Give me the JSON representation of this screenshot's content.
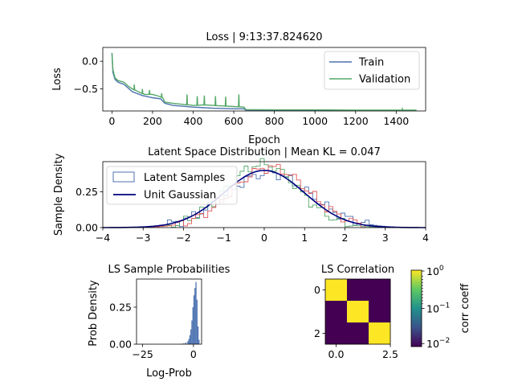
{
  "chart_data": [
    {
      "id": "loss",
      "type": "line",
      "title": "Loss | 9:13:37.824620",
      "xlabel": "Epoch",
      "ylabel": "Loss",
      "xlim": [
        -45,
        1545
      ],
      "ylim": [
        -0.9,
        0.25
      ],
      "xticks": [
        0,
        200,
        400,
        600,
        800,
        1000,
        1200,
        1400
      ],
      "yticks": [
        0.0,
        -0.5
      ],
      "legend": "upper right",
      "series": [
        {
          "name": "Train",
          "color": "#4c72b0",
          "points": [
            [
              0,
              0.15
            ],
            [
              5,
              -0.2
            ],
            [
              15,
              -0.33
            ],
            [
              30,
              -0.38
            ],
            [
              60,
              -0.42
            ],
            [
              100,
              -0.55
            ],
            [
              150,
              -0.62
            ],
            [
              200,
              -0.66
            ],
            [
              240,
              -0.68
            ],
            [
              260,
              -0.76
            ],
            [
              300,
              -0.8
            ],
            [
              400,
              -0.83
            ],
            [
              500,
              -0.85
            ],
            [
              600,
              -0.86
            ],
            [
              650,
              -0.86
            ],
            [
              660,
              -0.885
            ],
            [
              800,
              -0.89
            ],
            [
              1000,
              -0.89
            ],
            [
              1200,
              -0.89
            ],
            [
              1500,
              -0.89
            ]
          ]
        },
        {
          "name": "Validation",
          "color": "#55a868",
          "points": [
            [
              0,
              0.15
            ],
            [
              5,
              -0.15
            ],
            [
              15,
              -0.3
            ],
            [
              30,
              -0.35
            ],
            [
              60,
              -0.38
            ],
            [
              80,
              -0.45
            ],
            [
              100,
              -0.5
            ],
            [
              130,
              -0.55
            ],
            [
              160,
              -0.6
            ],
            [
              200,
              -0.6
            ],
            [
              230,
              -0.63
            ],
            [
              250,
              -0.66
            ],
            [
              260,
              -0.74
            ],
            [
              300,
              -0.76
            ],
            [
              350,
              -0.78
            ],
            [
              400,
              -0.8
            ],
            [
              450,
              -0.79
            ],
            [
              500,
              -0.8
            ],
            [
              550,
              -0.81
            ],
            [
              600,
              -0.82
            ],
            [
              650,
              -0.83
            ],
            [
              660,
              -0.875
            ],
            [
              800,
              -0.88
            ],
            [
              1000,
              -0.88
            ],
            [
              1200,
              -0.885
            ],
            [
              1500,
              -0.885
            ]
          ],
          "spikes": [
            [
              110,
              -0.42
            ],
            [
              150,
              -0.5
            ],
            [
              185,
              -0.52
            ],
            [
              245,
              -0.58
            ],
            [
              370,
              -0.6
            ],
            [
              420,
              -0.63
            ],
            [
              455,
              -0.62
            ],
            [
              510,
              -0.63
            ],
            [
              560,
              -0.64
            ],
            [
              625,
              -0.6
            ],
            [
              1430,
              -0.86
            ]
          ]
        }
      ]
    },
    {
      "id": "latent",
      "type": "histogram",
      "title": "Latent Space Distribution | Mean KL = 0.047",
      "ylabel": "Sample Density",
      "xlim": [
        -4,
        4
      ],
      "ylim": [
        0,
        0.46
      ],
      "xticks": [
        -4,
        -3,
        -2,
        -1,
        0,
        1,
        2,
        3,
        4
      ],
      "yticks": [
        0.0,
        0.25
      ],
      "legend": "upper left",
      "series": [
        {
          "name": "Latent Samples",
          "color": "#4c72b0",
          "mu": 0.1,
          "sigma": 1.05
        },
        {
          "color": "#55a868",
          "mu": -0.05,
          "sigma": 0.9
        },
        {
          "color": "#e15759",
          "mu": 0.15,
          "sigma": 0.95
        }
      ],
      "curve": {
        "name": "Unit Gaussian",
        "color": "#00007f",
        "mu": 0,
        "sigma": 1
      }
    },
    {
      "id": "ls_prob",
      "type": "histogram",
      "title": "LS Sample Probabilities",
      "xlabel": "Log-Prob",
      "ylabel": "Prob Density",
      "xlim": [
        -28,
        4
      ],
      "ylim": [
        0,
        0.44
      ],
      "xticks": [
        -25,
        0
      ],
      "yticks": [
        0.0,
        0.25
      ],
      "color": "#4c72b0",
      "bins": [
        [
          -6,
          0.003
        ],
        [
          -5,
          0.006
        ],
        [
          -4,
          0.012
        ],
        [
          -3,
          0.02
        ],
        [
          -2.5,
          0.035
        ],
        [
          -2,
          0.06
        ],
        [
          -1.5,
          0.1
        ],
        [
          -1,
          0.16
        ],
        [
          -0.5,
          0.25
        ],
        [
          0,
          0.33
        ],
        [
          0.5,
          0.38
        ],
        [
          1,
          0.42
        ],
        [
          1.5,
          0.3
        ],
        [
          2,
          0.12
        ],
        [
          2.5,
          0.03
        ]
      ]
    },
    {
      "id": "ls_corr",
      "type": "heatmap",
      "title": "LS Correlation",
      "xticks": [
        0.0,
        2.5
      ],
      "yticks": [
        0,
        2
      ],
      "matrix": [
        [
          1,
          0.01,
          0.01
        ],
        [
          0.01,
          1,
          0.01
        ],
        [
          0.01,
          0.01,
          1
        ]
      ],
      "colormap": {
        "low": "#440154",
        "mid": "#21918c",
        "high": "#fde725"
      },
      "colorbar": {
        "label": "corr coeff",
        "ticks": [
          "10^0",
          "10^-1",
          "10^-2"
        ]
      }
    }
  ]
}
